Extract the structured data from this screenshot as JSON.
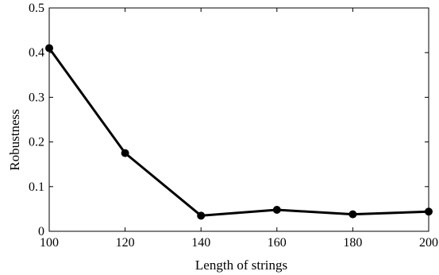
{
  "chart_data": {
    "type": "line",
    "title": "",
    "xlabel": "Length of strings",
    "ylabel": "Robustness",
    "x": [
      100,
      120,
      140,
      160,
      180,
      200
    ],
    "series": [
      {
        "values": [
          0.41,
          0.175,
          0.035,
          0.048,
          0.038,
          0.044
        ]
      }
    ],
    "xlim": [
      100,
      200
    ],
    "ylim": [
      0,
      0.5
    ],
    "xticks": [
      100,
      120,
      140,
      160,
      180,
      200
    ],
    "yticks": [
      0,
      0.1,
      0.2,
      0.3,
      0.4,
      0.5
    ],
    "xtick_labels": [
      "100",
      "120",
      "140",
      "160",
      "180",
      "200"
    ],
    "ytick_labels": [
      "0",
      "0.1",
      "0.2",
      "0.3",
      "0.4",
      "0.5"
    ],
    "grid": false,
    "box": true,
    "line_color": "#000000",
    "marker": "filled-circle"
  }
}
